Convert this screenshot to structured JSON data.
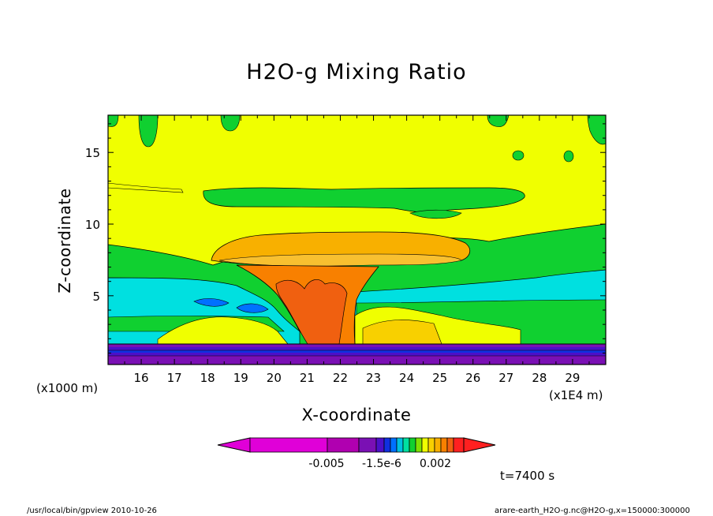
{
  "chart_data": {
    "type": "heatmap",
    "title": "H2O-g Mixing Ratio",
    "xlabel": "X-coordinate",
    "ylabel": "Z-coordinate",
    "x_unit": "(x1E4 m)",
    "y_unit": "(x1000 m)",
    "xlim": [
      15.0,
      30.0
    ],
    "ylim": [
      0.2,
      17.6
    ],
    "x_ticks": [
      16,
      17,
      18,
      19,
      20,
      21,
      22,
      23,
      24,
      25,
      26,
      27,
      28,
      29
    ],
    "y_ticks": [
      5,
      10,
      15
    ],
    "colorbar": {
      "colors": [
        "#e000d8",
        "#b000b0",
        "#7a10b4",
        "#4c10c8",
        "#1030e0",
        "#0070ff",
        "#00c0e0",
        "#00e0a0",
        "#10d030",
        "#80e000",
        "#f0ff00",
        "#f8d000",
        "#f8b000",
        "#f88000",
        "#f06010",
        "#ff2020"
      ],
      "tick_labels": [
        "-0.005",
        "-1.5e-6",
        "0.002"
      ]
    },
    "annotation": "t=7400 s",
    "footer_left": "/usr/local/bin/gpview  2010-10-26",
    "footer_right": "arare-earth_H2O-g.nc@H2O-g,x=150000:300000"
  }
}
